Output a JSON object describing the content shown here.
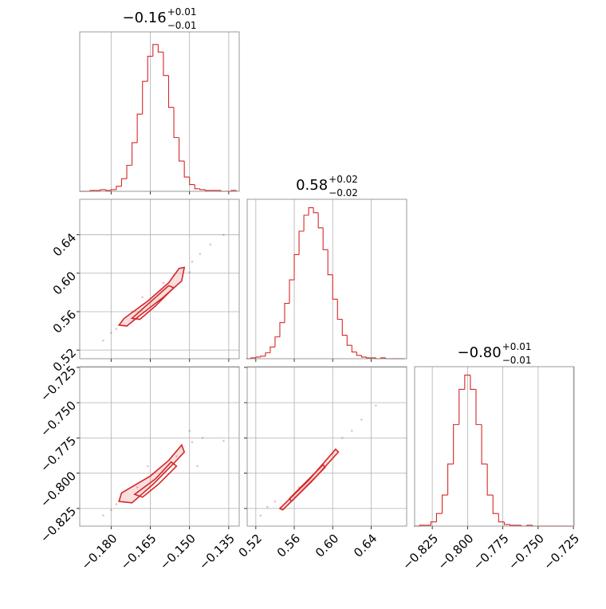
{
  "chart_data": {
    "type": "corner",
    "color": "#d62728",
    "grid": true,
    "params": [
      {
        "title": {
          "value": "−0.16",
          "plus": "+0.01",
          "minus": "−0.01"
        },
        "lim": [
          -0.192,
          -0.131
        ],
        "ticks": [
          {
            "value": -0.18,
            "label": "−0.180"
          },
          {
            "value": -0.165,
            "label": "−0.165"
          },
          {
            "value": -0.15,
            "label": "−0.150"
          },
          {
            "value": -0.135,
            "label": "−0.135"
          }
        ]
      },
      {
        "title": {
          "value": "0.58",
          "plus": "+0.02",
          "minus": "−0.02"
        },
        "lim": [
          0.511,
          0.677
        ],
        "ticks": [
          {
            "value": 0.52,
            "label": "0.52"
          },
          {
            "value": 0.56,
            "label": "0.56"
          },
          {
            "value": 0.6,
            "label": "0.60"
          },
          {
            "value": 0.64,
            "label": "0.64"
          }
        ]
      },
      {
        "title": {
          "value": "−0.80",
          "plus": "+0.01",
          "minus": "−0.01"
        },
        "lim": [
          -0.8375,
          -0.7245
        ],
        "ticks": [
          {
            "value": -0.825,
            "label": "−0.825"
          },
          {
            "value": -0.8,
            "label": "−0.800"
          },
          {
            "value": -0.775,
            "label": "−0.775"
          },
          {
            "value": -0.75,
            "label": "−0.750"
          },
          {
            "value": -0.725,
            "label": "−0.725"
          }
        ]
      }
    ],
    "rows": [
      [
        {
          "ylim": [
            0,
            190
          ],
          "bins": [
            -0.192,
            -0.19,
            -0.188,
            -0.186,
            -0.184,
            -0.182,
            -0.18,
            -0.178,
            -0.176,
            -0.174,
            -0.172,
            -0.17,
            -0.168,
            -0.166,
            -0.164,
            -0.162,
            -0.16,
            -0.158,
            -0.156,
            -0.154,
            -0.152,
            -0.15,
            -0.148,
            -0.146,
            -0.144,
            -0.142,
            -0.14,
            -0.138,
            -0.136,
            -0.134,
            -0.132
          ],
          "counts": [
            0,
            0,
            1,
            1,
            2,
            1,
            2,
            6,
            15,
            31,
            58,
            92,
            131,
            161,
            175,
            166,
            138,
            100,
            64,
            36,
            17,
            8,
            3,
            2,
            1,
            1,
            1,
            0,
            0,
            1
          ]
        }
      ],
      [
        {
          "scatter": {
            "x": [
              -0.183,
              -0.18,
              -0.172,
              -0.149,
              -0.146,
              -0.142,
              -0.137,
              -0.15,
              -0.178,
              -0.16,
              -0.168,
              -0.156
            ],
            "y": [
              0.53,
              0.538,
              0.56,
              0.612,
              0.62,
              0.63,
              0.64,
              0.601,
              0.542,
              0.59,
              0.575,
              0.598
            ]
          },
          "contours": [
            {
              "x": [
                -0.177,
                -0.175,
                -0.166,
                -0.158,
                -0.154,
                -0.152,
                -0.153,
                -0.16,
                -0.169,
                -0.174
              ],
              "y": [
                0.546,
                0.553,
                0.571,
                0.59,
                0.605,
                0.606,
                0.592,
                0.575,
                0.556,
                0.545
              ]
            },
            {
              "x": [
                -0.172,
                -0.165,
                -0.158,
                -0.156,
                -0.163,
                -0.169
              ],
              "y": [
                0.553,
                0.57,
                0.587,
                0.585,
                0.566,
                0.552
              ]
            }
          ]
        },
        {
          "ylim": [
            0,
            190
          ],
          "bins": [
            0.51,
            0.515,
            0.52,
            0.525,
            0.53,
            0.535,
            0.54,
            0.545,
            0.55,
            0.555,
            0.56,
            0.565,
            0.57,
            0.575,
            0.58,
            0.585,
            0.59,
            0.595,
            0.6,
            0.605,
            0.61,
            0.615,
            0.62,
            0.625,
            0.63,
            0.635,
            0.64,
            0.645,
            0.65,
            0.655,
            0.66,
            0.665,
            0.67,
            0.675
          ],
          "counts": [
            0,
            1,
            2,
            3,
            7,
            14,
            26,
            43,
            66,
            94,
            124,
            152,
            171,
            180,
            174,
            156,
            130,
            100,
            71,
            47,
            28,
            16,
            8,
            4,
            2,
            1,
            1,
            0,
            1,
            0,
            0,
            0,
            0
          ]
        }
      ],
      [
        {
          "scatter": {
            "x": [
              -0.183,
              -0.18,
              -0.17,
              -0.149,
              -0.147,
              -0.145,
              -0.137,
              -0.15,
              -0.178,
              -0.16,
              -0.166,
              -0.155
            ],
            "y": [
              -0.83,
              -0.826,
              -0.81,
              -0.778,
              -0.795,
              -0.775,
              -0.777,
              -0.77,
              -0.822,
              -0.8,
              -0.795,
              -0.788
            ]
          },
          "contours": [
            {
              "x": [
                -0.177,
                -0.176,
                -0.165,
                -0.158,
                -0.153,
                -0.152,
                -0.156,
                -0.164,
                -0.172
              ],
              "y": [
                -0.82,
                -0.814,
                -0.802,
                -0.791,
                -0.78,
                -0.785,
                -0.793,
                -0.808,
                -0.821
              ]
            },
            {
              "x": [
                -0.171,
                -0.163,
                -0.157,
                -0.155,
                -0.162,
                -0.168
              ],
              "y": [
                -0.815,
                -0.804,
                -0.792,
                -0.795,
                -0.808,
                -0.817
              ]
            }
          ]
        },
        {
          "scatter": {
            "x": [
              0.525,
              0.532,
              0.54,
              0.61,
              0.62,
              0.63,
              0.645,
              0.565,
              0.585,
              0.6
            ],
            "y": [
              -0.83,
              -0.824,
              -0.82,
              -0.775,
              -0.77,
              -0.762,
              -0.752,
              -0.81,
              -0.797,
              -0.786
            ]
          },
          "contours": [
            {
              "x": [
                0.545,
                0.575,
                0.603,
                0.606,
                0.578,
                0.548
              ],
              "y": [
                -0.825,
                -0.805,
                -0.783,
                -0.785,
                -0.806,
                -0.826
              ]
            },
            {
              "x": [
                0.555,
                0.59,
                0.592,
                0.557
              ],
              "y": [
                -0.818,
                -0.794,
                -0.796,
                -0.82
              ]
            }
          ]
        },
        {
          "ylim": [
            0,
            190
          ],
          "bins": [
            -0.838,
            -0.834,
            -0.83,
            -0.826,
            -0.822,
            -0.818,
            -0.814,
            -0.81,
            -0.806,
            -0.802,
            -0.798,
            -0.794,
            -0.79,
            -0.786,
            -0.782,
            -0.778,
            -0.774,
            -0.77,
            -0.766,
            -0.762,
            -0.758,
            -0.754,
            -0.75,
            -0.746,
            -0.742,
            -0.738,
            -0.734,
            -0.73,
            -0.726
          ],
          "counts": [
            0,
            1,
            1,
            5,
            15,
            37,
            74,
            121,
            163,
            180,
            163,
            121,
            74,
            37,
            15,
            5,
            2,
            1,
            1,
            0,
            1,
            0,
            0,
            0,
            0,
            0,
            0,
            0
          ]
        }
      ]
    ]
  }
}
